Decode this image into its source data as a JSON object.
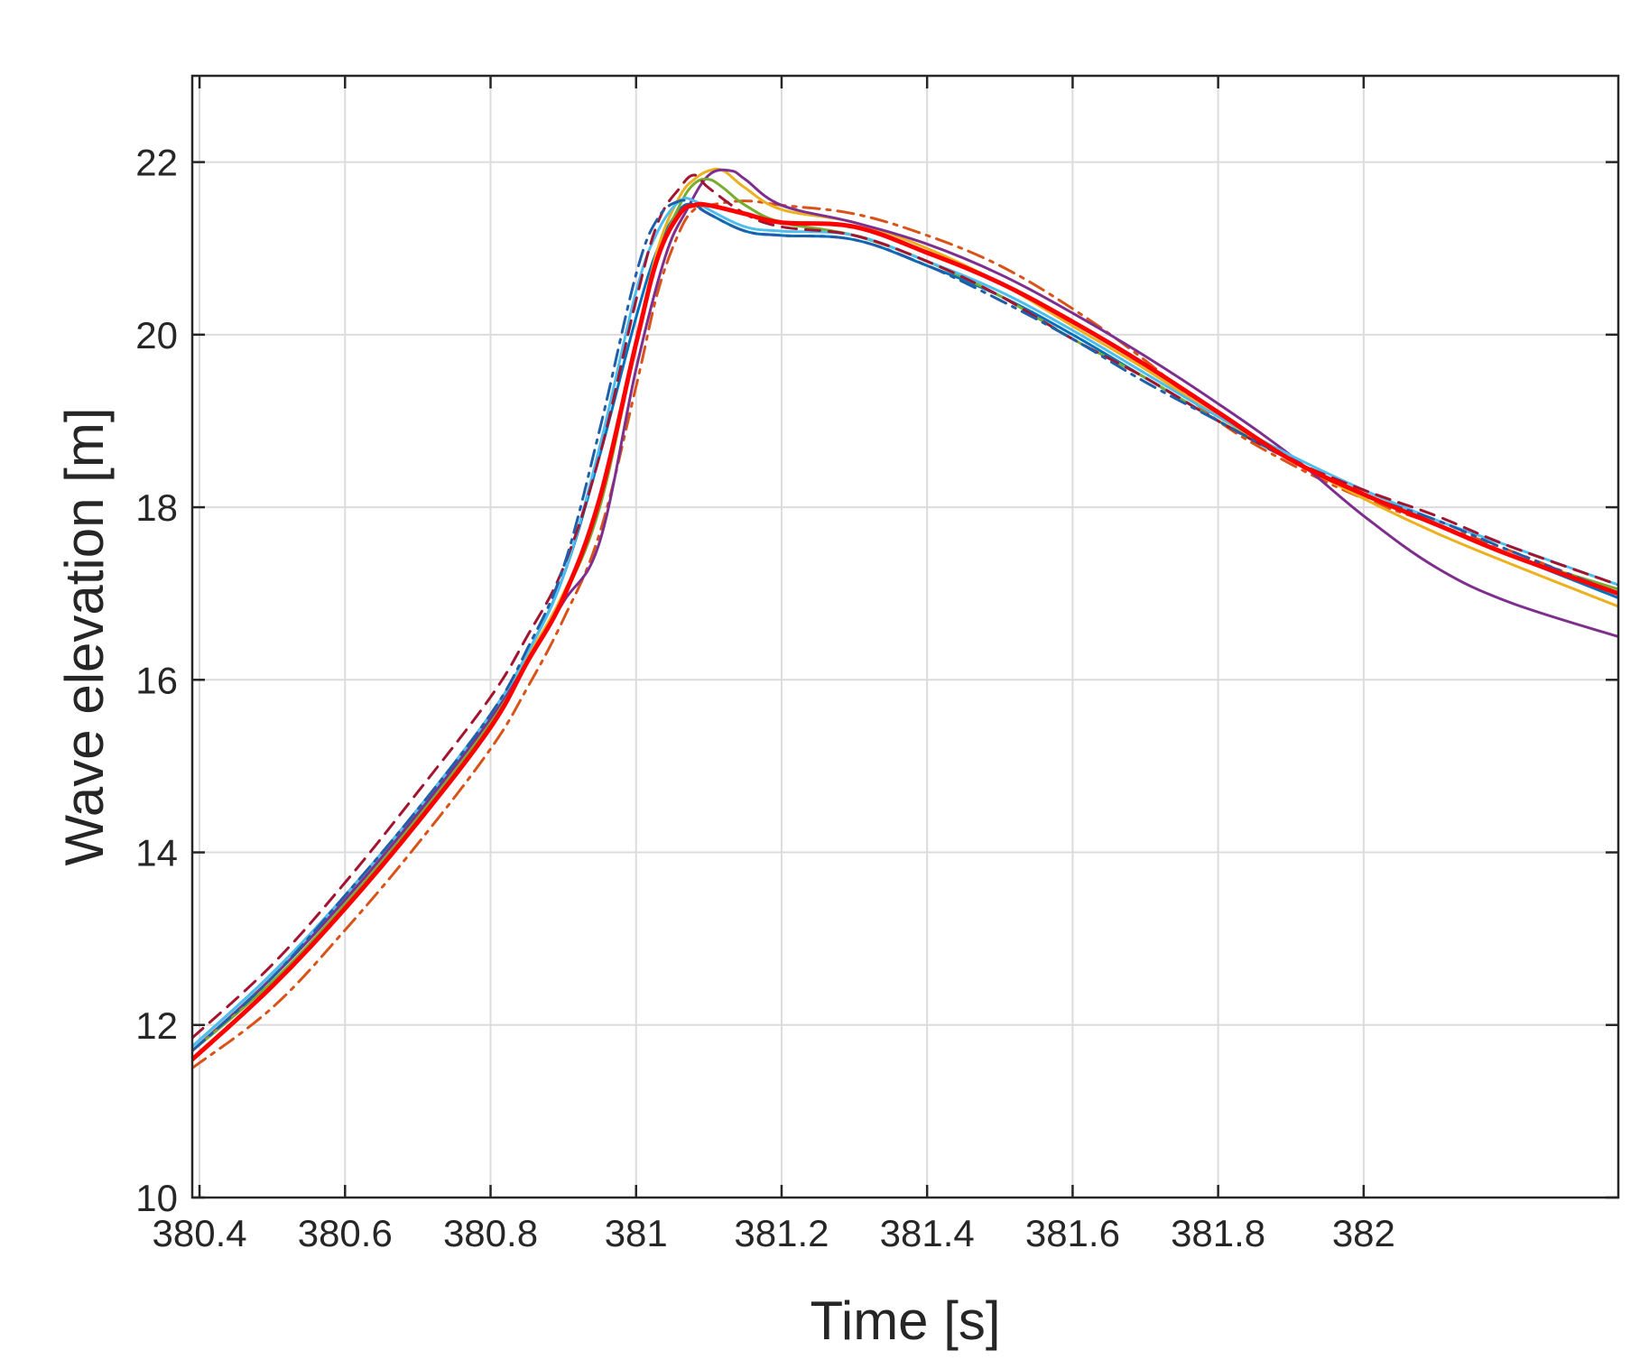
{
  "chart_data": {
    "type": "line",
    "title": "",
    "xlabel": "Time [s]",
    "ylabel": "Wave elevation [m]",
    "xlim": [
      380.39,
      382.35
    ],
    "ylim": [
      10,
      23
    ],
    "grid": true,
    "legend": "none",
    "x_ticks": [
      380.4,
      380.6,
      380.8,
      381,
      381.2,
      381.4,
      381.6,
      381.8,
      382
    ],
    "x_tick_labels": [
      "380.4",
      "380.6",
      "380.8",
      "381",
      "381.2",
      "381.4",
      "381.6",
      "381.8",
      "382"
    ],
    "y_ticks": [
      10,
      12,
      14,
      16,
      18,
      20,
      22
    ],
    "y_tick_labels": [
      "10",
      "12",
      "14",
      "16",
      "18",
      "20",
      "22"
    ],
    "series": [
      {
        "color": "#0072BD",
        "dash": "solid",
        "width": 3,
        "x": [
          380.39,
          380.5,
          380.6,
          380.7,
          380.8,
          380.85,
          380.9,
          380.95,
          381.0,
          381.03,
          381.06,
          381.08,
          381.1,
          381.15,
          381.2,
          381.3,
          381.4,
          381.5,
          381.6,
          381.7,
          381.8,
          381.9,
          382.0,
          382.1,
          382.2,
          382.35
        ],
        "y": [
          11.75,
          12.6,
          13.5,
          14.5,
          15.6,
          16.3,
          17.2,
          18.6,
          20.2,
          21.0,
          21.45,
          21.5,
          21.4,
          21.2,
          21.15,
          21.1,
          20.8,
          20.45,
          20.0,
          19.5,
          19.0,
          18.55,
          18.15,
          17.8,
          17.45,
          16.95
        ]
      },
      {
        "color": "#D95319",
        "dash": "dashdot",
        "width": 3,
        "x": [
          380.39,
          380.5,
          380.6,
          380.7,
          380.8,
          380.85,
          380.9,
          380.95,
          381.0,
          381.03,
          381.06,
          381.08,
          381.1,
          381.15,
          381.2,
          381.3,
          381.4,
          381.5,
          381.6,
          381.7,
          381.8,
          381.9,
          382.0,
          382.1,
          382.2,
          382.35
        ],
        "y": [
          11.5,
          12.2,
          13.1,
          14.1,
          15.2,
          15.9,
          16.7,
          17.7,
          19.4,
          20.5,
          21.2,
          21.45,
          21.5,
          21.55,
          21.5,
          21.4,
          21.15,
          20.8,
          20.3,
          19.7,
          19.0,
          18.5,
          18.1,
          17.8,
          17.5,
          17.0
        ]
      },
      {
        "color": "#EDB120",
        "dash": "solid",
        "width": 3,
        "x": [
          380.39,
          380.5,
          380.6,
          380.7,
          380.8,
          380.85,
          380.9,
          380.95,
          381.0,
          381.03,
          381.06,
          381.08,
          381.1,
          381.12,
          381.15,
          381.2,
          381.3,
          381.4,
          381.5,
          381.6,
          381.7,
          381.8,
          381.9,
          382.0,
          382.1,
          382.2,
          382.35
        ],
        "y": [
          11.7,
          12.55,
          13.45,
          14.45,
          15.55,
          16.25,
          17.0,
          18.0,
          19.9,
          21.0,
          21.6,
          21.8,
          21.9,
          21.9,
          21.7,
          21.45,
          21.3,
          21.0,
          20.6,
          20.1,
          19.6,
          19.05,
          18.55,
          18.1,
          17.7,
          17.35,
          16.85
        ]
      },
      {
        "color": "#7E2F8E",
        "dash": "solid",
        "width": 3,
        "x": [
          380.39,
          380.5,
          380.6,
          380.7,
          380.8,
          380.85,
          380.9,
          380.95,
          381.0,
          381.04,
          381.07,
          381.1,
          381.13,
          381.15,
          381.2,
          381.3,
          381.4,
          381.5,
          381.6,
          381.7,
          381.8,
          381.9,
          382.0,
          382.1,
          382.2,
          382.35
        ],
        "y": [
          11.7,
          12.55,
          13.45,
          14.45,
          15.55,
          16.2,
          16.9,
          17.6,
          19.6,
          20.9,
          21.45,
          21.85,
          21.9,
          21.8,
          21.5,
          21.3,
          21.05,
          20.7,
          20.25,
          19.75,
          19.2,
          18.6,
          17.9,
          17.3,
          16.9,
          16.5
        ]
      },
      {
        "color": "#77AC30",
        "dash": "solid",
        "width": 3,
        "x": [
          380.39,
          380.5,
          380.6,
          380.7,
          380.8,
          380.85,
          380.9,
          380.95,
          381.0,
          381.03,
          381.06,
          381.08,
          381.1,
          381.12,
          381.15,
          381.2,
          381.3,
          381.4,
          381.5,
          381.6,
          381.7,
          381.8,
          381.9,
          382.0,
          382.1,
          382.2,
          382.35
        ],
        "y": [
          11.7,
          12.5,
          13.4,
          14.4,
          15.5,
          16.2,
          16.95,
          18.0,
          19.9,
          20.9,
          21.5,
          21.75,
          21.8,
          21.7,
          21.5,
          21.3,
          21.15,
          20.85,
          20.45,
          19.95,
          19.5,
          19.0,
          18.55,
          18.15,
          17.8,
          17.45,
          17.05
        ]
      },
      {
        "color": "#4DBEEE",
        "dash": "solid",
        "width": 3,
        "x": [
          380.39,
          380.5,
          380.6,
          380.7,
          380.8,
          380.85,
          380.9,
          380.95,
          381.0,
          381.03,
          381.06,
          381.08,
          381.1,
          381.15,
          381.2,
          381.3,
          381.4,
          381.5,
          381.6,
          381.7,
          381.8,
          381.9,
          382.0,
          382.1,
          382.2,
          382.35
        ],
        "y": [
          11.75,
          12.6,
          13.5,
          14.5,
          15.6,
          16.3,
          17.2,
          18.7,
          20.5,
          21.2,
          21.55,
          21.55,
          21.45,
          21.25,
          21.2,
          21.15,
          20.85,
          20.5,
          20.05,
          19.55,
          19.05,
          18.6,
          18.2,
          17.85,
          17.55,
          17.1
        ]
      },
      {
        "color": "#A2142F",
        "dash": "dashed",
        "width": 3,
        "x": [
          380.39,
          380.5,
          380.6,
          380.7,
          380.8,
          380.85,
          380.9,
          380.95,
          381.0,
          381.03,
          381.06,
          381.08,
          381.1,
          381.15,
          381.2,
          381.3,
          381.4,
          381.5,
          381.6,
          381.7,
          381.8,
          381.9,
          382.0,
          382.1,
          382.2,
          382.35
        ],
        "y": [
          11.85,
          12.7,
          13.65,
          14.7,
          15.8,
          16.5,
          17.3,
          18.6,
          20.4,
          21.3,
          21.7,
          21.85,
          21.7,
          21.4,
          21.25,
          21.15,
          20.85,
          20.45,
          19.95,
          19.5,
          19.0,
          18.55,
          18.2,
          17.9,
          17.55,
          17.1
        ]
      },
      {
        "color": "#1F5FAA",
        "dash": "dashdot",
        "width": 3,
        "x": [
          380.39,
          380.5,
          380.6,
          380.7,
          380.8,
          380.85,
          380.9,
          380.95,
          381.0,
          381.03,
          381.06,
          381.08,
          381.1,
          381.15,
          381.2,
          381.3,
          381.4,
          381.5,
          381.6,
          381.7,
          381.8,
          381.9,
          382.0,
          382.1,
          382.2,
          382.35
        ],
        "y": [
          11.7,
          12.55,
          13.5,
          14.5,
          15.6,
          16.35,
          17.3,
          18.9,
          20.7,
          21.35,
          21.55,
          21.5,
          21.4,
          21.2,
          21.15,
          21.1,
          20.8,
          20.4,
          19.95,
          19.45,
          19.0,
          18.55,
          18.15,
          17.85,
          17.5,
          17.0
        ]
      },
      {
        "color": "#FF0000",
        "dash": "solid",
        "width": 5,
        "x": [
          380.39,
          380.5,
          380.6,
          380.7,
          380.8,
          380.85,
          380.9,
          380.95,
          381.0,
          381.03,
          381.06,
          381.08,
          381.1,
          381.15,
          381.2,
          381.3,
          381.4,
          381.5,
          381.6,
          381.7,
          381.8,
          381.9,
          382.0,
          382.1,
          382.2,
          382.35
        ],
        "y": [
          11.6,
          12.45,
          13.35,
          14.35,
          15.45,
          16.2,
          16.95,
          18.1,
          19.9,
          20.9,
          21.4,
          21.5,
          21.5,
          21.4,
          21.3,
          21.25,
          20.95,
          20.6,
          20.15,
          19.65,
          19.1,
          18.55,
          18.15,
          17.8,
          17.45,
          17.0
        ]
      }
    ]
  }
}
